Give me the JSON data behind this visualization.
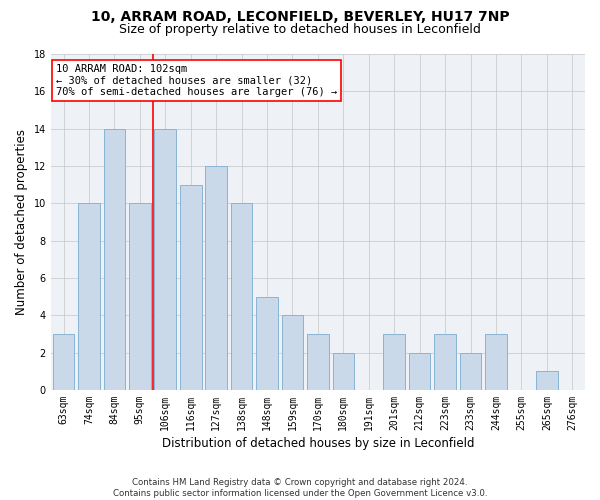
{
  "title1": "10, ARRAM ROAD, LECONFIELD, BEVERLEY, HU17 7NP",
  "title2": "Size of property relative to detached houses in Leconfield",
  "xlabel": "Distribution of detached houses by size in Leconfield",
  "ylabel": "Number of detached properties",
  "bar_labels": [
    "63sqm",
    "74sqm",
    "84sqm",
    "95sqm",
    "106sqm",
    "116sqm",
    "127sqm",
    "138sqm",
    "148sqm",
    "159sqm",
    "170sqm",
    "180sqm",
    "191sqm",
    "201sqm",
    "212sqm",
    "223sqm",
    "233sqm",
    "244sqm",
    "255sqm",
    "265sqm",
    "276sqm"
  ],
  "bar_values": [
    3,
    10,
    14,
    10,
    14,
    11,
    12,
    10,
    5,
    4,
    3,
    2,
    0,
    3,
    2,
    3,
    2,
    3,
    0,
    1,
    0
  ],
  "bar_color": "#c9d9ea",
  "bar_edge_color": "#8ab4d4",
  "grid_color": "#cccccc",
  "vline_x_index": 4,
  "vline_color": "red",
  "annotation_text": "10 ARRAM ROAD: 102sqm\n← 30% of detached houses are smaller (32)\n70% of semi-detached houses are larger (76) →",
  "annotation_box_color": "white",
  "annotation_box_edgecolor": "red",
  "annotation_fontsize": 7.5,
  "footer_text": "Contains HM Land Registry data © Crown copyright and database right 2024.\nContains public sector information licensed under the Open Government Licence v3.0.",
  "ylim": [
    0,
    18
  ],
  "yticks": [
    0,
    2,
    4,
    6,
    8,
    10,
    12,
    14,
    16,
    18
  ],
  "background_color": "#eef2f7",
  "title1_fontsize": 10,
  "title2_fontsize": 9,
  "ylabel_fontsize": 8.5,
  "xlabel_fontsize": 8.5,
  "tick_fontsize": 7
}
